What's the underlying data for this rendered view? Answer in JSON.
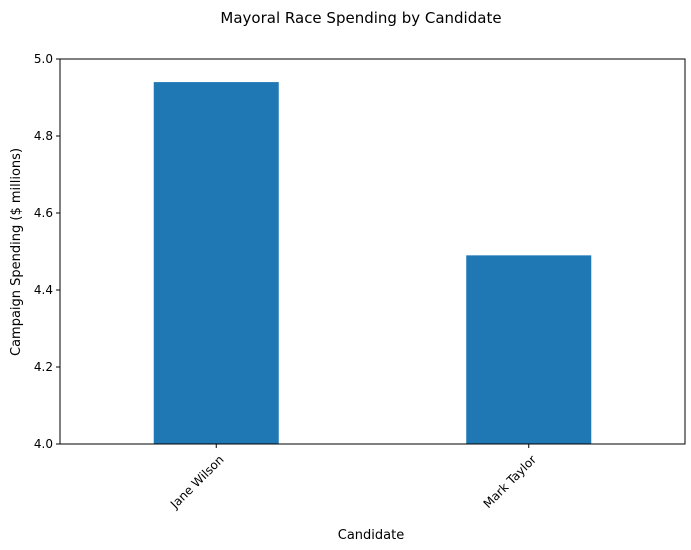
{
  "chart_data": {
    "type": "bar",
    "title": "Mayoral Race Spending by Candidate",
    "xlabel": "Candidate",
    "ylabel": "Campaign Spending ($ millions)",
    "categories": [
      "Jane Wilson",
      "Mark Taylor"
    ],
    "values": [
      4.94,
      4.49
    ],
    "ylim": [
      4.0,
      5.0
    ],
    "yticks": [
      "4.0",
      "4.2",
      "4.4",
      "4.6",
      "4.8",
      "5.0"
    ],
    "grid": false,
    "bar_color": "#1f77b4"
  }
}
